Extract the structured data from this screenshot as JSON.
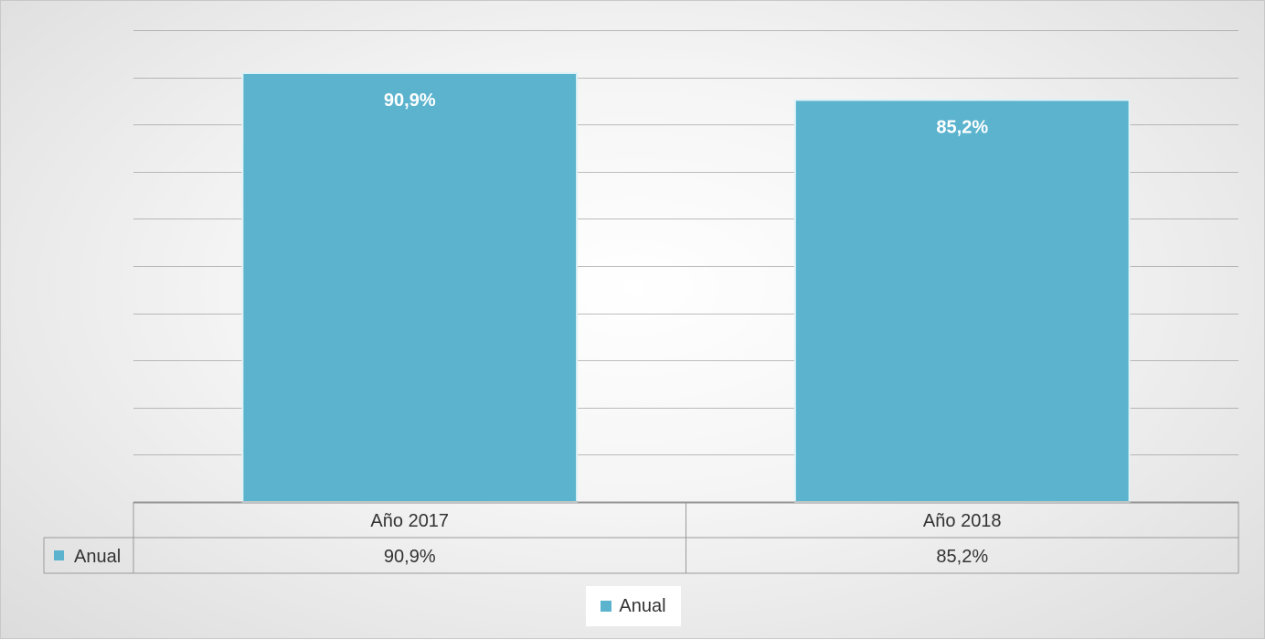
{
  "chart_data": {
    "type": "bar",
    "categories": [
      "Año 2017",
      "Año 2018"
    ],
    "series": [
      {
        "name": "Anual",
        "values": [
          90.9,
          85.2
        ],
        "labels": [
          "90,9%",
          "85,2%"
        ]
      }
    ],
    "ylim": [
      0,
      100
    ],
    "grid": true,
    "data_table": true,
    "legend": "bottom",
    "colors": {
      "bar": "#5bb3cd",
      "bar_edge": "#dff2f7",
      "grid": "#8a8a8a",
      "table_border": "#9a9a9a"
    }
  },
  "legend": {
    "label": "Anual"
  }
}
